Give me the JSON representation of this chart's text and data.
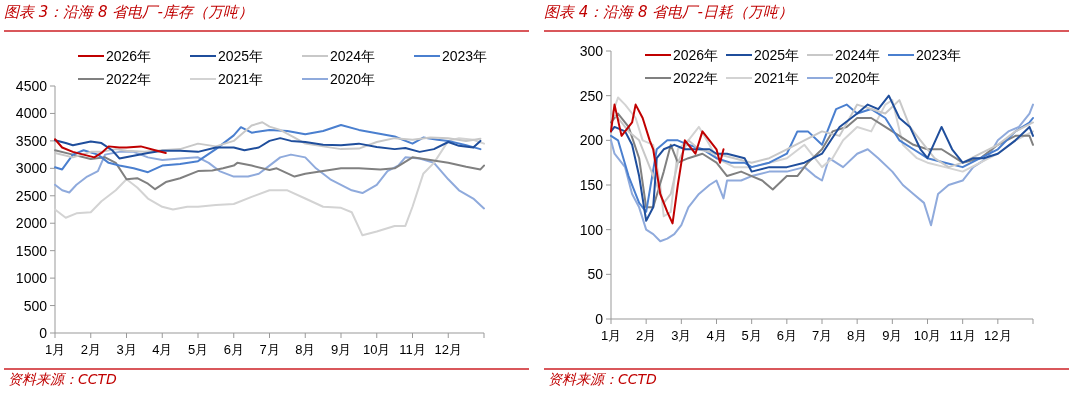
{
  "chart_data": [
    {
      "type": "line",
      "title": "图表 3：沿海 8 省电厂-库存（万吨）",
      "annotations": [
        "资料来源：CCTD"
      ],
      "legend": "top",
      "xlim": [
        1,
        13
      ],
      "ylim": [
        0,
        4500
      ],
      "xticks": [
        {
          "value": 1,
          "label": "1月"
        },
        {
          "value": 2,
          "label": "2月"
        },
        {
          "value": 3,
          "label": "3月"
        },
        {
          "value": 4,
          "label": "4月"
        },
        {
          "value": 5,
          "label": "5月"
        },
        {
          "value": 6,
          "label": "6月"
        },
        {
          "value": 7,
          "label": "7月"
        },
        {
          "value": 8,
          "label": "8月"
        },
        {
          "value": 9,
          "label": "9月"
        },
        {
          "value": 10,
          "label": "10月"
        },
        {
          "value": 11,
          "label": "11月"
        },
        {
          "value": 12,
          "label": "12月"
        },
        {
          "value": 13,
          "label": null
        }
      ],
      "yticks": [
        0,
        500,
        1000,
        1500,
        2000,
        2500,
        3000,
        3500,
        4000,
        4500
      ],
      "series": [
        {
          "name": "2026年",
          "color": "#c00000",
          "x": [
            1.0,
            1.2,
            1.5,
            1.8,
            2.1,
            2.3,
            2.5,
            2.8,
            3.0,
            3.4,
            3.8,
            4.1
          ],
          "values": [
            3530,
            3380,
            3300,
            3250,
            3200,
            3280,
            3400,
            3380,
            3380,
            3400,
            3330,
            3280
          ]
        },
        {
          "name": "2025年",
          "color": "#1f4e9c",
          "x": [
            1.0,
            1.3,
            1.5,
            2.0,
            2.3,
            2.6,
            2.8,
            3.2,
            3.6,
            4.0,
            4.5,
            5.0,
            5.5,
            6.0,
            6.3,
            6.7,
            7.0,
            7.3,
            7.6,
            8.0,
            8.5,
            9.0,
            9.5,
            10.0,
            10.5,
            10.8,
            11.2,
            11.6,
            12.0,
            12.3,
            12.7,
            12.9
          ],
          "values": [
            3510,
            3460,
            3420,
            3490,
            3460,
            3330,
            3180,
            3230,
            3280,
            3320,
            3320,
            3300,
            3380,
            3380,
            3330,
            3380,
            3500,
            3550,
            3500,
            3480,
            3430,
            3420,
            3450,
            3390,
            3350,
            3370,
            3300,
            3350,
            3480,
            3410,
            3380,
            3500
          ]
        },
        {
          "name": "2024年",
          "color": "#c8c8c8",
          "x": [
            1.0,
            1.5,
            2.0,
            2.3,
            2.7,
            3.0,
            3.5,
            4.0,
            4.5,
            5.0,
            5.5,
            6.0,
            6.5,
            6.8,
            7.0,
            7.3,
            7.7,
            8.0,
            8.5,
            9.0,
            9.5,
            10.0,
            10.5,
            11.0,
            11.5,
            12.0,
            12.5,
            12.9
          ],
          "values": [
            3280,
            3200,
            3300,
            3300,
            3350,
            3320,
            3300,
            3330,
            3350,
            3450,
            3400,
            3500,
            3780,
            3840,
            3760,
            3700,
            3560,
            3450,
            3400,
            3350,
            3360,
            3480,
            3550,
            3520,
            3560,
            3550,
            3500,
            3540
          ]
        },
        {
          "name": "2023年",
          "color": "#4a7fcf",
          "x": [
            1.0,
            1.2,
            1.5,
            1.8,
            2.2,
            2.5,
            2.8,
            3.2,
            3.6,
            4.0,
            4.5,
            5.0,
            5.5,
            6.0,
            6.2,
            6.5,
            7.0,
            7.5,
            8.0,
            8.5,
            9.0,
            9.5,
            10.0,
            10.5,
            11.0,
            11.3,
            11.7,
            12.0,
            12.5,
            12.9
          ],
          "values": [
            3020,
            2980,
            3250,
            3330,
            3250,
            3100,
            3050,
            3000,
            2930,
            3050,
            3080,
            3130,
            3350,
            3600,
            3750,
            3650,
            3700,
            3680,
            3620,
            3680,
            3790,
            3700,
            3640,
            3580,
            3450,
            3560,
            3520,
            3500,
            3420,
            3350
          ]
        },
        {
          "name": "2022年",
          "color": "#808080",
          "x": [
            1.0,
            1.5,
            2.0,
            2.4,
            2.7,
            3.0,
            3.3,
            3.6,
            3.8,
            4.1,
            4.5,
            5.0,
            5.4,
            5.7,
            6.0,
            6.1,
            6.5,
            7.0,
            7.2,
            7.7,
            8.0,
            8.5,
            9.0,
            9.5,
            10.1,
            10.5,
            11.0,
            11.5,
            12.0,
            12.5,
            12.9,
            13.0
          ],
          "values": [
            3330,
            3250,
            3170,
            3200,
            3100,
            2800,
            2820,
            2720,
            2620,
            2750,
            2820,
            2950,
            2960,
            3000,
            3050,
            3100,
            3050,
            2970,
            3000,
            2850,
            2900,
            2950,
            3000,
            3000,
            2980,
            3000,
            3200,
            3150,
            3100,
            3030,
            2980,
            3050
          ]
        },
        {
          "name": "2021年",
          "color": "#d3d3d3",
          "x": [
            1.0,
            1.3,
            1.6,
            2.0,
            2.3,
            2.7,
            3.0,
            3.3,
            3.6,
            4.0,
            4.3,
            4.7,
            5.0,
            5.5,
            6.0,
            6.5,
            7.0,
            7.5,
            8.0,
            8.5,
            9.0,
            9.3,
            9.6,
            10.0,
            10.5,
            10.8,
            11.0,
            11.3,
            11.6,
            11.8,
            12.0,
            12.3,
            12.7,
            13.0
          ],
          "values": [
            2250,
            2100,
            2180,
            2200,
            2400,
            2600,
            2800,
            2650,
            2450,
            2300,
            2250,
            2300,
            2300,
            2330,
            2350,
            2480,
            2600,
            2600,
            2450,
            2300,
            2280,
            2200,
            1780,
            1850,
            1950,
            1950,
            2300,
            2900,
            3100,
            3300,
            3500,
            3550,
            3520,
            3450
          ]
        },
        {
          "name": "2020年",
          "color": "#8faadc",
          "x": [
            1.0,
            1.2,
            1.4,
            1.6,
            1.9,
            2.2,
            2.4,
            2.8,
            3.2,
            3.6,
            4.0,
            4.5,
            5.0,
            5.3,
            5.6,
            6.0,
            6.4,
            6.7,
            7.0,
            7.3,
            7.6,
            8.0,
            8.3,
            8.7,
            9.0,
            9.3,
            9.6,
            10.0,
            10.3,
            10.6,
            10.8,
            11.2,
            11.6,
            12.0,
            12.3,
            12.7,
            13.0
          ],
          "values": [
            2700,
            2600,
            2560,
            2700,
            2850,
            2950,
            3250,
            3300,
            3300,
            3200,
            3150,
            3180,
            3200,
            3100,
            2950,
            2850,
            2850,
            2900,
            3050,
            3200,
            3250,
            3200,
            3000,
            2800,
            2700,
            2600,
            2550,
            2700,
            2950,
            3050,
            3200,
            3180,
            3100,
            2800,
            2600,
            2450,
            2270
          ]
        }
      ]
    },
    {
      "type": "line",
      "title": "图表 4：沿海 8 省电厂-日耗（万吨）",
      "annotations": [
        "资料来源：CCTD"
      ],
      "legend": "top",
      "xlim": [
        1,
        13
      ],
      "ylim": [
        0,
        300
      ],
      "xticks": [
        {
          "value": 1,
          "label": "1月"
        },
        {
          "value": 2,
          "label": "2月"
        },
        {
          "value": 3,
          "label": "3月"
        },
        {
          "value": 4,
          "label": "4月"
        },
        {
          "value": 5,
          "label": "5月"
        },
        {
          "value": 6,
          "label": "6月"
        },
        {
          "value": 7,
          "label": "7月"
        },
        {
          "value": 8,
          "label": "8月"
        },
        {
          "value": 9,
          "label": "9月"
        },
        {
          "value": 10,
          "label": "10月"
        },
        {
          "value": 11,
          "label": "11月"
        },
        {
          "value": 12,
          "label": "12月"
        },
        {
          "value": 13,
          "label": null
        }
      ],
      "yticks": [
        0,
        50,
        100,
        150,
        200,
        250,
        300
      ],
      "series": [
        {
          "name": "2026年",
          "color": "#c00000",
          "x": [
            1.0,
            1.1,
            1.3,
            1.6,
            1.7,
            1.9,
            2.1,
            2.2,
            2.4,
            2.6,
            2.75,
            2.9,
            3.1,
            3.4,
            3.6,
            3.8,
            4.0,
            4.1,
            4.2
          ],
          "values": [
            210,
            240,
            205,
            220,
            240,
            225,
            200,
            190,
            140,
            120,
            107,
            150,
            200,
            185,
            210,
            200,
            190,
            175,
            190
          ]
        },
        {
          "name": "2025年",
          "color": "#1f4e9c",
          "x": [
            1.0,
            1.1,
            1.4,
            1.6,
            1.8,
            2.0,
            2.2,
            2.3,
            2.5,
            2.8,
            3.1,
            3.4,
            3.8,
            4.0,
            4.3,
            4.8,
            5.0,
            5.5,
            6.0,
            6.5,
            7.0,
            7.5,
            8.0,
            8.3,
            8.6,
            8.9,
            9.2,
            9.5,
            9.8,
            10.0,
            10.4,
            10.7,
            11.0,
            11.3,
            11.6,
            12.0,
            12.5,
            12.9,
            13.0
          ],
          "values": [
            210,
            215,
            210,
            195,
            160,
            110,
            125,
            180,
            190,
            195,
            190,
            190,
            190,
            185,
            185,
            180,
            165,
            170,
            170,
            175,
            185,
            215,
            230,
            240,
            235,
            250,
            225,
            215,
            190,
            180,
            215,
            190,
            175,
            180,
            180,
            185,
            200,
            215,
            205
          ]
        },
        {
          "name": "2024年",
          "color": "#c8c8c8",
          "x": [
            1.0,
            1.2,
            1.5,
            1.8,
            2.0,
            2.3,
            2.5,
            2.7,
            2.9,
            3.2,
            3.5,
            4.0,
            4.5,
            5.0,
            5.5,
            6.0,
            6.5,
            7.0,
            7.5,
            8.0,
            8.4,
            8.8,
            9.2,
            9.5,
            9.8,
            10.2,
            10.6,
            11.0,
            11.5,
            12.0,
            12.5,
            13.0
          ],
          "values": [
            230,
            225,
            210,
            200,
            180,
            150,
            130,
            140,
            175,
            200,
            190,
            185,
            180,
            175,
            180,
            190,
            200,
            210,
            205,
            240,
            235,
            230,
            245,
            215,
            200,
            180,
            170,
            175,
            185,
            195,
            210,
            220
          ]
        },
        {
          "name": "2023年",
          "color": "#4a7fcf",
          "x": [
            1.0,
            1.2,
            1.5,
            1.8,
            2.0,
            2.3,
            2.6,
            2.9,
            3.2,
            3.6,
            4.0,
            4.4,
            4.8,
            5.0,
            5.5,
            6.0,
            6.3,
            6.6,
            7.0,
            7.4,
            7.7,
            8.0,
            8.4,
            8.8,
            9.2,
            9.6,
            10.0,
            10.5,
            11.0,
            11.5,
            12.0,
            12.5,
            12.9,
            13.0
          ],
          "values": [
            205,
            200,
            160,
            130,
            120,
            190,
            200,
            200,
            195,
            190,
            180,
            175,
            175,
            170,
            175,
            185,
            210,
            210,
            195,
            235,
            240,
            230,
            235,
            225,
            200,
            190,
            180,
            175,
            170,
            180,
            190,
            210,
            220,
            225
          ]
        },
        {
          "name": "2022年",
          "color": "#808080",
          "x": [
            1.0,
            1.2,
            1.5,
            1.8,
            2.0,
            2.2,
            2.5,
            2.7,
            2.9,
            3.2,
            3.6,
            4.0,
            4.3,
            4.7,
            5.0,
            5.3,
            5.6,
            6.0,
            6.3,
            6.6,
            7.0,
            7.3,
            7.7,
            8.0,
            8.4,
            8.8,
            9.2,
            9.6,
            10.0,
            10.4,
            10.8,
            11.0,
            11.5,
            12.0,
            12.5,
            12.9,
            13.0
          ],
          "values": [
            220,
            230,
            215,
            180,
            125,
            125,
            165,
            195,
            175,
            180,
            185,
            175,
            160,
            165,
            160,
            155,
            145,
            160,
            160,
            175,
            190,
            210,
            215,
            225,
            225,
            215,
            205,
            195,
            190,
            190,
            180,
            175,
            180,
            195,
            205,
            205,
            195
          ]
        },
        {
          "name": "2021年",
          "color": "#d3d3d3",
          "x": [
            1.0,
            1.2,
            1.4,
            1.7,
            1.9,
            2.2,
            2.4,
            2.5,
            2.7,
            2.9,
            3.2,
            3.5,
            3.8,
            4.0,
            4.5,
            5.0,
            5.5,
            6.0,
            6.5,
            7.0,
            7.3,
            7.6,
            8.0,
            8.4,
            8.8,
            9.0,
            9.3,
            9.7,
            10.0,
            10.5,
            11.0,
            11.5,
            12.0,
            12.5,
            13.0
          ],
          "values": [
            225,
            248,
            240,
            225,
            200,
            195,
            150,
            115,
            120,
            190,
            200,
            215,
            195,
            180,
            170,
            170,
            175,
            180,
            195,
            170,
            180,
            200,
            215,
            210,
            240,
            245,
            195,
            180,
            175,
            170,
            165,
            175,
            185,
            200,
            210
          ]
        },
        {
          "name": "2020年",
          "color": "#8faadc",
          "x": [
            1.0,
            1.1,
            1.4,
            1.6,
            1.8,
            2.0,
            2.2,
            2.4,
            2.6,
            2.8,
            3.0,
            3.2,
            3.5,
            3.8,
            4.0,
            4.2,
            4.3,
            4.7,
            5.0,
            5.5,
            6.0,
            6.5,
            6.8,
            7.0,
            7.2,
            7.6,
            8.0,
            8.3,
            8.6,
            9.0,
            9.3,
            9.6,
            9.9,
            10.1,
            10.3,
            10.6,
            11.0,
            11.3,
            11.7,
            12.0,
            12.3,
            12.6,
            12.9,
            13.0
          ],
          "values": [
            200,
            185,
            170,
            140,
            125,
            100,
            95,
            87,
            90,
            95,
            105,
            125,
            140,
            150,
            155,
            135,
            155,
            155,
            160,
            165,
            165,
            170,
            160,
            155,
            180,
            170,
            185,
            190,
            180,
            165,
            150,
            140,
            130,
            105,
            140,
            150,
            155,
            170,
            180,
            200,
            210,
            215,
            230,
            240
          ]
        }
      ]
    }
  ]
}
